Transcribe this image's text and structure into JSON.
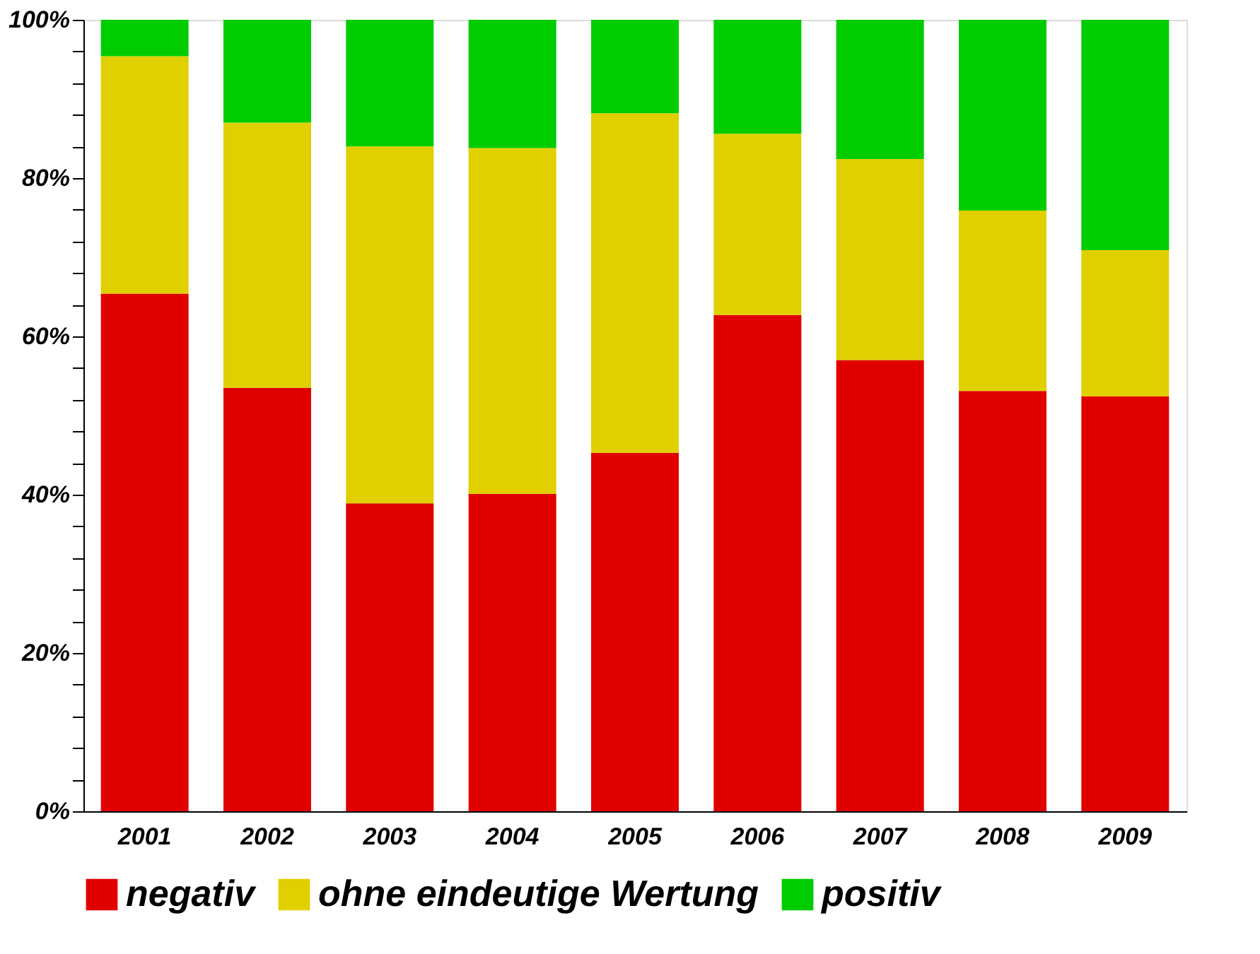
{
  "chart_data": {
    "type": "bar",
    "stacked": true,
    "categories": [
      "2001",
      "2002",
      "2003",
      "2004",
      "2005",
      "2006",
      "2007",
      "2008",
      "2009"
    ],
    "series": [
      {
        "name": "negativ",
        "color": "#e00000",
        "values": [
          65.4,
          53.5,
          38.9,
          40.1,
          45.3,
          62.7,
          57.0,
          53.1,
          52.4
        ]
      },
      {
        "name": "ohne eindeutige Wertung",
        "color": "#e0d000",
        "values": [
          30.0,
          33.5,
          45.1,
          43.7,
          42.9,
          22.9,
          25.4,
          22.8,
          18.5
        ]
      },
      {
        "name": "positiv",
        "color": "#00cc00",
        "values": [
          4.6,
          13.0,
          16.0,
          16.2,
          11.8,
          14.4,
          17.6,
          24.1,
          29.1
        ]
      }
    ],
    "ylim": [
      0,
      100
    ],
    "yticks": [
      {
        "value": 0,
        "label": "0%"
      },
      {
        "value": 4,
        "label": null
      },
      {
        "value": 8,
        "label": null
      },
      {
        "value": 12,
        "label": null
      },
      {
        "value": 16,
        "label": null
      },
      {
        "value": 20,
        "label": "20%"
      },
      {
        "value": 24,
        "label": null
      },
      {
        "value": 28,
        "label": null
      },
      {
        "value": 32,
        "label": null
      },
      {
        "value": 36,
        "label": null
      },
      {
        "value": 40,
        "label": "40%"
      },
      {
        "value": 44,
        "label": null
      },
      {
        "value": 48,
        "label": null
      },
      {
        "value": 52,
        "label": null
      },
      {
        "value": 56,
        "label": null
      },
      {
        "value": 60,
        "label": "60%"
      },
      {
        "value": 64,
        "label": null
      },
      {
        "value": 68,
        "label": null
      },
      {
        "value": 72,
        "label": null
      },
      {
        "value": 76,
        "label": null
      },
      {
        "value": 80,
        "label": "80%"
      },
      {
        "value": 84,
        "label": null
      },
      {
        "value": 88,
        "label": null
      },
      {
        "value": 92,
        "label": null
      },
      {
        "value": 96,
        "label": null
      },
      {
        "value": 100,
        "label": "100%"
      }
    ],
    "grid": false,
    "legend": "bottom"
  }
}
